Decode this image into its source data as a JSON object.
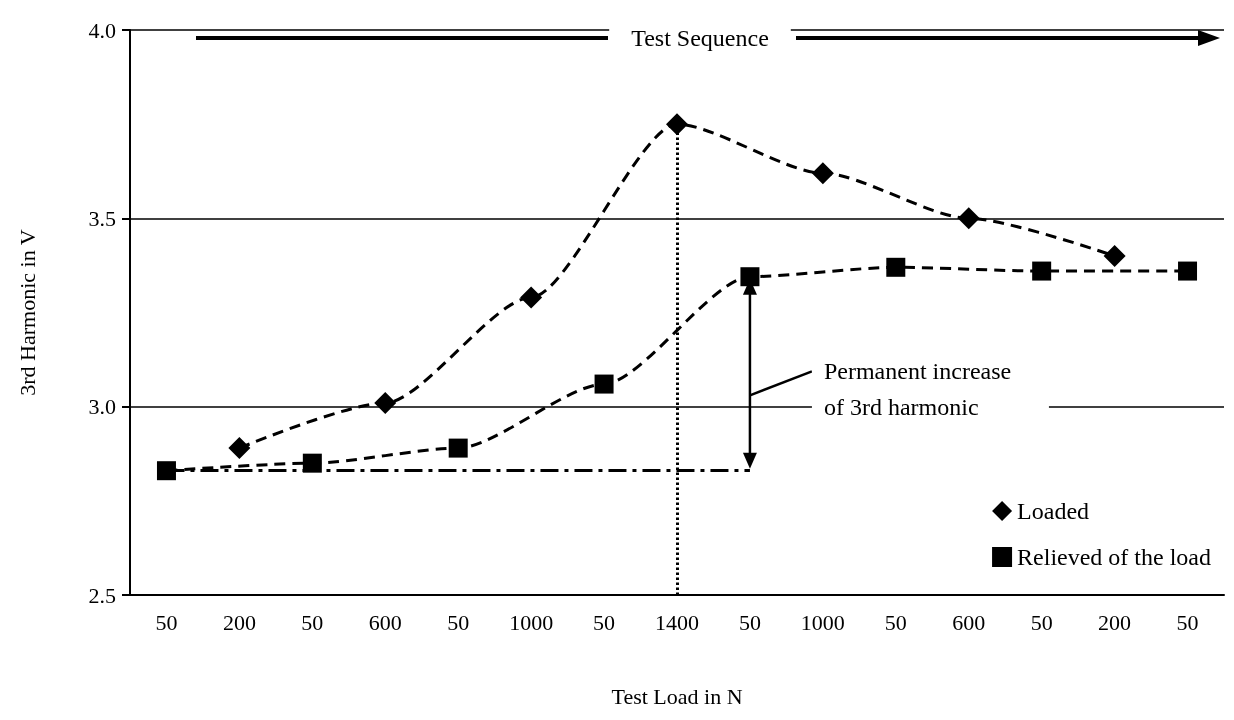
{
  "chart_data": {
    "type": "line",
    "xlabel": "Test Load in N",
    "ylabel": "3rd Harmonic in V",
    "categories": [
      "50",
      "200",
      "50",
      "600",
      "50",
      "1000",
      "50",
      "1400",
      "50",
      "1000",
      "50",
      "600",
      "50",
      "200",
      "50"
    ],
    "series": [
      {
        "name": "Loaded",
        "color": "#000000",
        "marker": "diamond",
        "values": [
          null,
          2.89,
          null,
          3.01,
          null,
          3.29,
          null,
          3.75,
          null,
          3.62,
          null,
          3.5,
          null,
          3.4,
          null
        ]
      },
      {
        "name": "Relieved of the load",
        "color": "#000000",
        "marker": "square",
        "values": [
          2.83,
          null,
          2.85,
          null,
          2.89,
          null,
          3.06,
          null,
          3.345,
          null,
          3.37,
          null,
          3.36,
          null,
          3.36
        ]
      }
    ],
    "ylim": [
      2.5,
      4.0
    ],
    "yticks": [
      2.5,
      {
        "value": 3,
        "label": "3.0"
      },
      3.5,
      {
        "value": 4,
        "label": "4.0"
      }
    ],
    "grid": "y",
    "legend": "bottom right",
    "line_style": "dashed",
    "ref_lines": [
      {
        "axis": "x",
        "value": "1400",
        "line_style": "dotted"
      },
      {
        "axis": "y",
        "value": 2.83,
        "line_style": "dashed"
      }
    ],
    "annotations": [
      "Test Sequence",
      "Permanent increase of 3rd harmonic"
    ]
  }
}
